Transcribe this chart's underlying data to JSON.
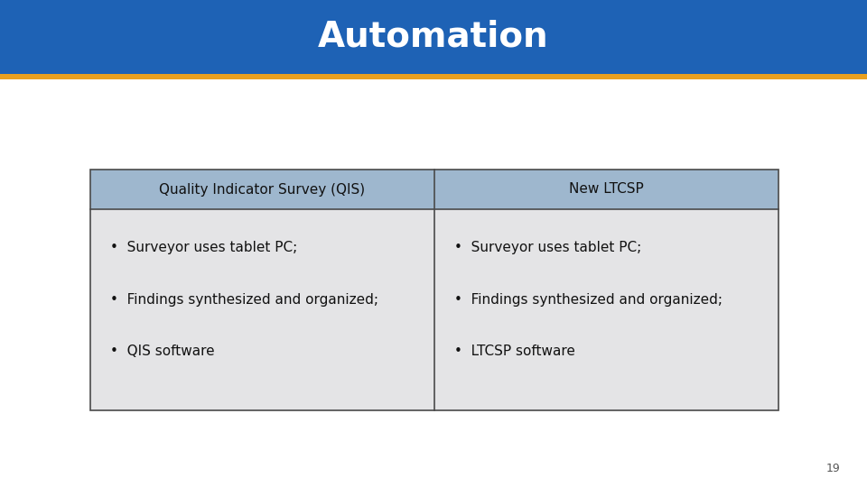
{
  "title": "Automation",
  "title_color": "#FFFFFF",
  "header_bg_color": "#1E62B5",
  "gold_bar_color": "#E8A020",
  "table_header_bg": "#9EB7CE",
  "table_body_bg": "#E4E4E6",
  "table_border_color": "#4A4A4A",
  "col1_header": "Quality Indicator Survey (QIS)",
  "col2_header": "New LTCSP",
  "col1_items": [
    "Surveyor uses tablet PC;",
    "Findings synthesized and organized;",
    "QIS software"
  ],
  "col2_items": [
    "Surveyor uses tablet PC;",
    "Findings synthesized and organized;",
    "LTCSP software"
  ],
  "page_number": "19",
  "bg_color": "#FFFFFF"
}
